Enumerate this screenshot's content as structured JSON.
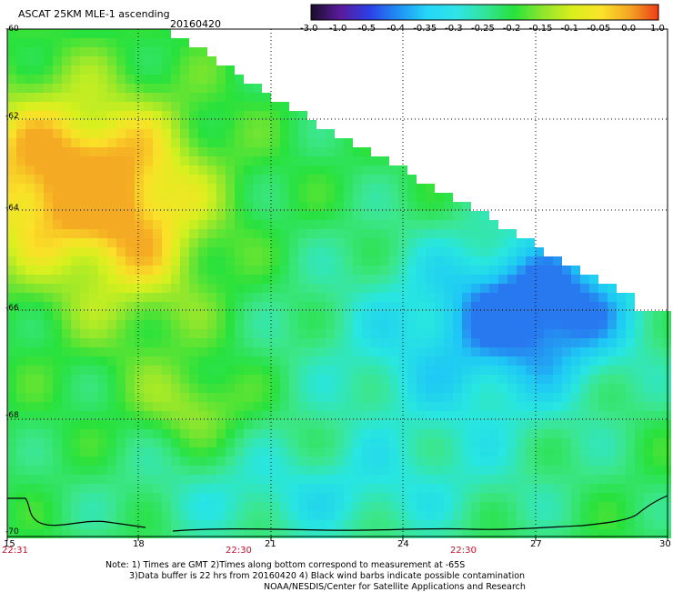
{
  "header": {
    "title": "ASCAT 25KM MLE-1 ascending",
    "date": "20160420"
  },
  "colorbar": {
    "labels": [
      "-3.0",
      "-1.0",
      "-0.5",
      "-0.4",
      "-0.35",
      "-0.3",
      "-0.25",
      "-0.2",
      "-0.15",
      "-0.1",
      "-0.05",
      "0.0",
      "1.0"
    ],
    "colors": [
      "#1a0d2b",
      "#5a1a9b",
      "#2b3fe6",
      "#1f8ff3",
      "#24d6f7",
      "#30e4e8",
      "#33e39b",
      "#27e23b",
      "#8fe52d",
      "#d8ef1b",
      "#fbe42b",
      "#f4a523",
      "#ee3c18"
    ]
  },
  "axes": {
    "lon_labels": [
      "15",
      "18",
      "21",
      "24",
      "27",
      "30"
    ],
    "lat_labels": [
      "-60",
      "-62",
      "-64",
      "-66",
      "-68",
      "-70"
    ],
    "time_labels": [
      "22:31",
      "22:30",
      "22:30"
    ]
  },
  "note": {
    "line1": "Note: 1) Times are GMT 2)Times along bottom correspond to measurement at -65S",
    "line2": "3)Data buffer is 22 hrs from 20160420 4) Black wind barbs indicate possible contamination",
    "credit": "NOAA/NESDIS/Center for Satellite Applications and Research"
  },
  "palette": {
    "frame": "#000000",
    "grid": "#000000",
    "time_text": "#c8102e"
  }
}
